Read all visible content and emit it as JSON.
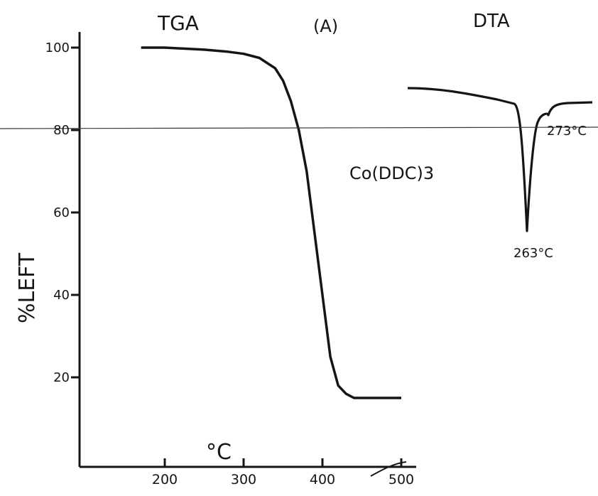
{
  "chart_data": {
    "type": "line",
    "labels": {
      "tga": "TGA",
      "panel": "(A)",
      "dta": "DTA",
      "compound": "Co(DDC)3",
      "ylabel": "%LEFT",
      "xlabel": "°C",
      "dta_peak_main": "263°C",
      "dta_peak_minor": "273°C"
    },
    "x_ticks": [
      200,
      300,
      400,
      500
    ],
    "y_ticks": [
      20,
      40,
      60,
      80,
      100
    ],
    "y_tick_labels": [
      "20",
      "40",
      "60",
      "80",
      "100"
    ],
    "x_tick_labels": [
      "200",
      "300",
      "400",
      "500"
    ],
    "xlim": [
      100,
      500
    ],
    "ylim": [
      0,
      100
    ],
    "grid": false,
    "tga_series": {
      "x": [
        170,
        200,
        250,
        280,
        300,
        320,
        340,
        350,
        360,
        370,
        380,
        390,
        400,
        410,
        420,
        430,
        440,
        460,
        480,
        500
      ],
      "y": [
        100,
        100,
        99.5,
        99,
        98.5,
        97.5,
        95,
        92,
        87,
        80,
        70,
        55,
        40,
        25,
        18,
        16,
        15,
        15,
        15,
        15
      ]
    },
    "dta_events": [
      {
        "type": "endotherm",
        "temperature": 263,
        "strength": "large"
      },
      {
        "type": "endotherm",
        "temperature": 273,
        "strength": "small"
      }
    ]
  }
}
